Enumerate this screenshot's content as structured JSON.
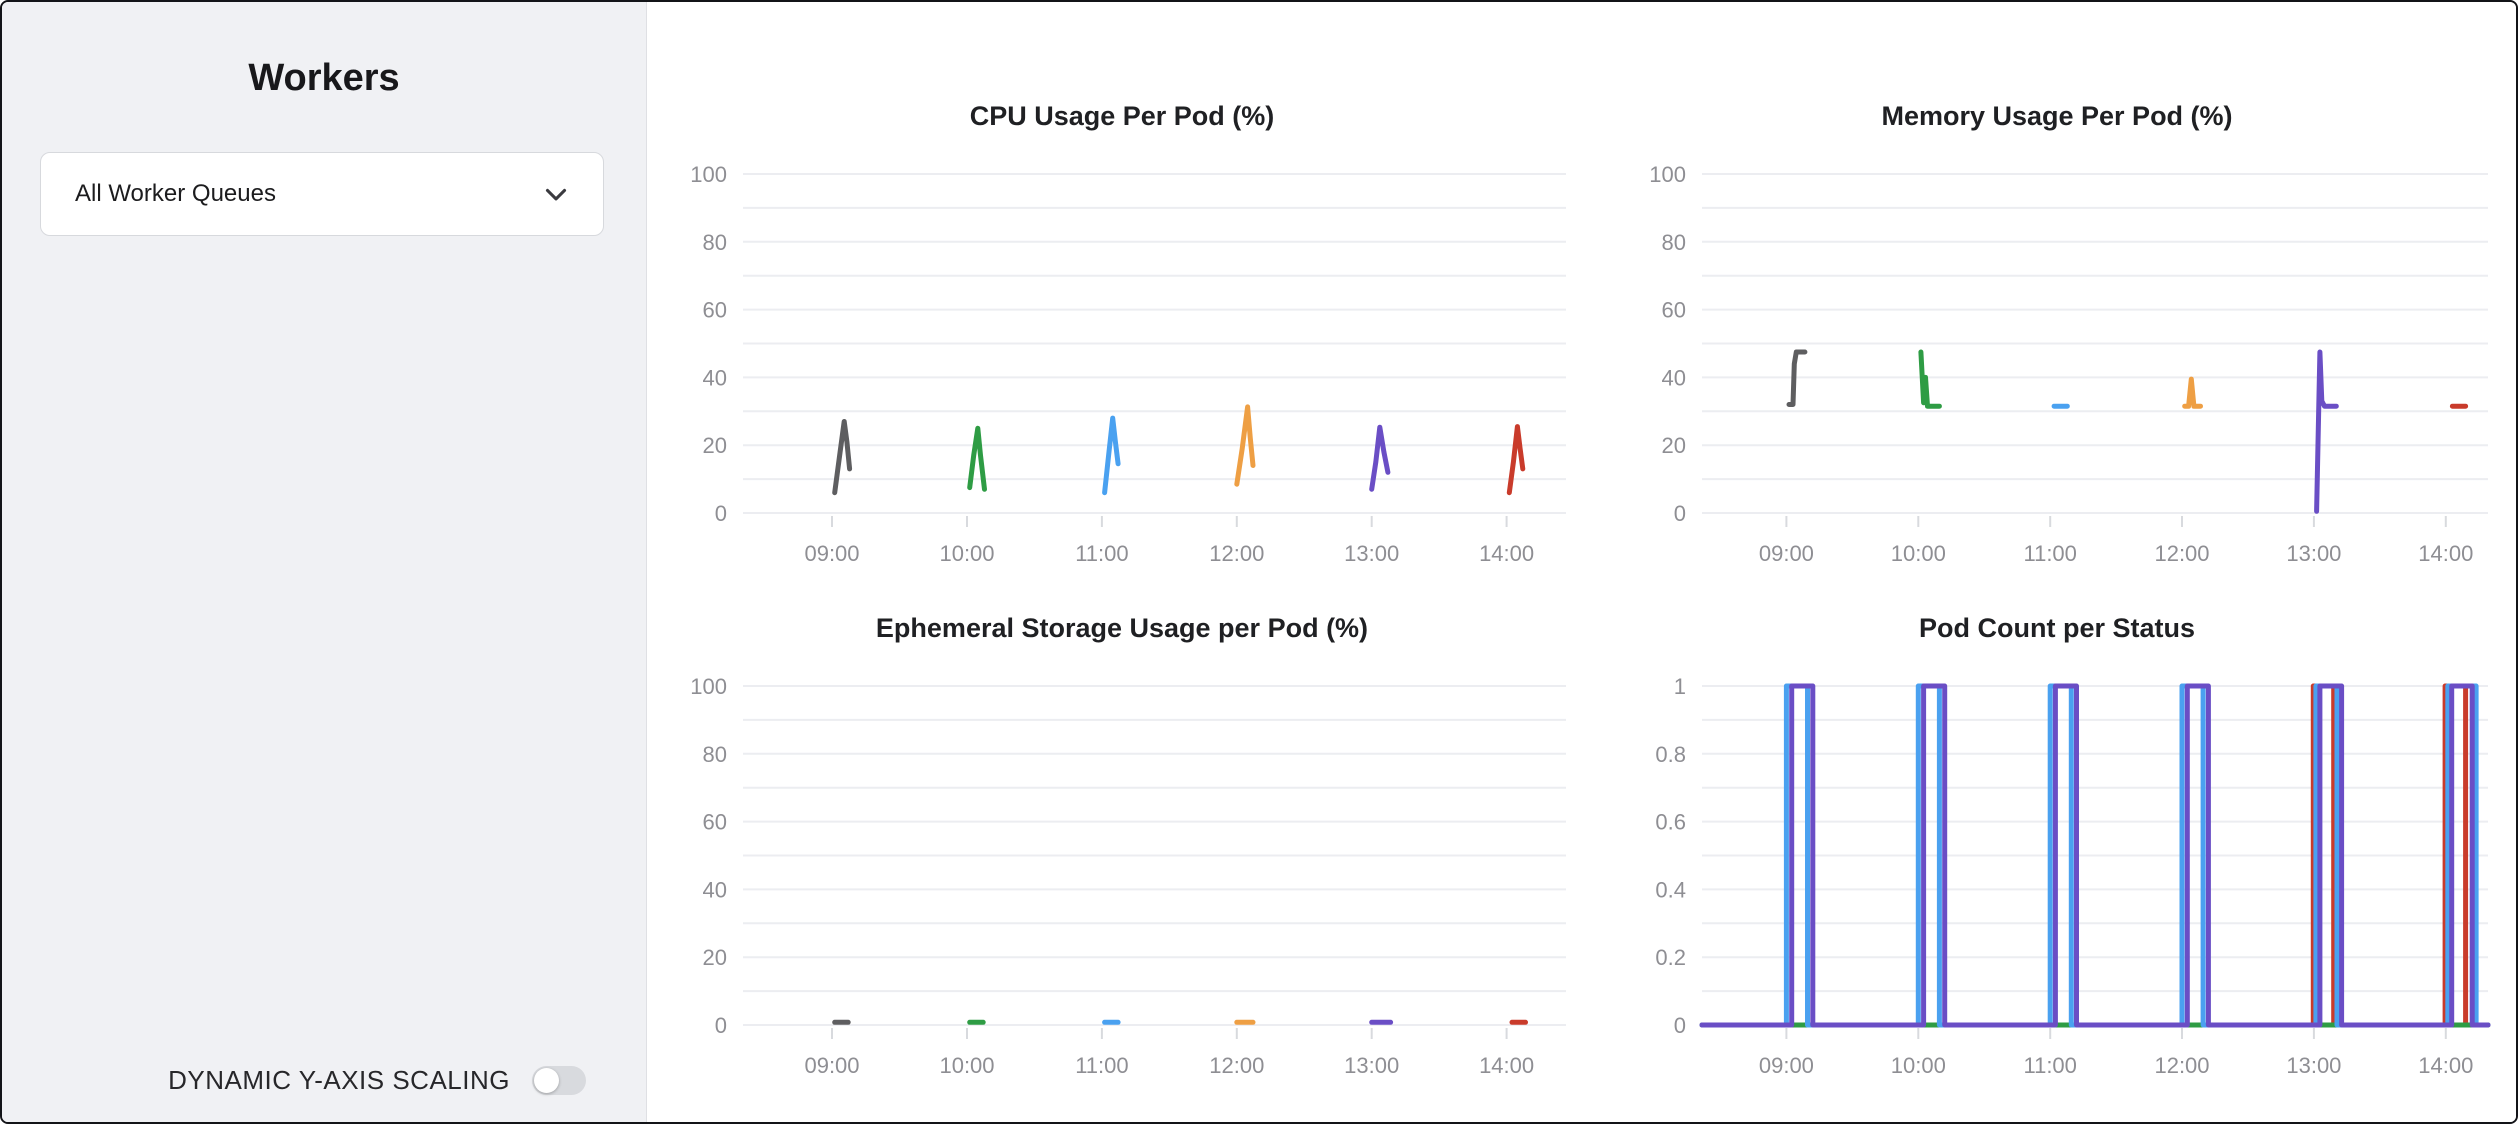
{
  "sidebar": {
    "title": "Workers",
    "queue_selector": {
      "value": "All Worker Queues"
    },
    "toggle": {
      "label": "DYNAMIC Y-AXIS SCALING",
      "enabled": false
    }
  },
  "chart_data": [
    {
      "type": "line",
      "title": "CPU Usage Per Pod (%)",
      "xlim": [
        8.34,
        14.44
      ],
      "ylim": [
        0,
        100
      ],
      "yticks": [
        0,
        20,
        40,
        60,
        80,
        100
      ],
      "grid_step": 10,
      "x_tick_hours": [
        9,
        10,
        11,
        12,
        13,
        14
      ],
      "x_tick_labels": [
        "09:00",
        "10:00",
        "11:00",
        "12:00",
        "13:00",
        "14:00"
      ],
      "series": [
        {
          "color": "#5e5e60",
          "points": [
            [
              9.02,
              6
            ],
            [
              9.06,
              18
            ],
            [
              9.09,
              27
            ],
            [
              9.11,
              21
            ],
            [
              9.13,
              13
            ]
          ]
        },
        {
          "color": "#2e9c44",
          "points": [
            [
              10.02,
              7.5
            ],
            [
              10.05,
              17
            ],
            [
              10.08,
              25
            ],
            [
              10.1,
              17
            ],
            [
              10.13,
              7
            ]
          ]
        },
        {
          "color": "#4aa1f0",
          "points": [
            [
              11.02,
              6
            ],
            [
              11.05,
              17
            ],
            [
              11.08,
              28
            ],
            [
              11.1,
              21
            ],
            [
              11.12,
              14.5
            ]
          ]
        },
        {
          "color": "#ee9f44",
          "points": [
            [
              12.0,
              8.5
            ],
            [
              12.04,
              19
            ],
            [
              12.08,
              31.3
            ],
            [
              12.1,
              22
            ],
            [
              12.12,
              14
            ]
          ]
        },
        {
          "color": "#6a4ec5",
          "points": [
            [
              13.0,
              7
            ],
            [
              13.03,
              15
            ],
            [
              13.06,
              25.3
            ],
            [
              13.09,
              18
            ],
            [
              13.12,
              12
            ]
          ]
        },
        {
          "color": "#c93b2b",
          "points": [
            [
              14.02,
              6
            ],
            [
              14.05,
              15
            ],
            [
              14.08,
              25.5
            ],
            [
              14.1,
              19
            ],
            [
              14.12,
              13
            ]
          ]
        }
      ]
    },
    {
      "type": "line",
      "title": "Memory Usage Per Pod (%)",
      "xlim": [
        8.36,
        14.32
      ],
      "ylim": [
        0,
        100
      ],
      "yticks": [
        0,
        20,
        40,
        60,
        80,
        100
      ],
      "grid_step": 10,
      "x_tick_hours": [
        9,
        10,
        11,
        12,
        13,
        14
      ],
      "x_tick_labels": [
        "09:00",
        "10:00",
        "11:00",
        "12:00",
        "13:00",
        "14:00"
      ],
      "series": [
        {
          "color": "#5e5e60",
          "points": [
            [
              9.02,
              32
            ],
            [
              9.05,
              32
            ],
            [
              9.06,
              44
            ],
            [
              9.075,
              47.5
            ],
            [
              9.14,
              47.5
            ]
          ]
        },
        {
          "color": "#2e9c44",
          "points": [
            [
              10.02,
              47.5
            ],
            [
              10.04,
              32.5
            ],
            [
              10.055,
              40
            ],
            [
              10.07,
              31.5
            ],
            [
              10.16,
              31.5
            ]
          ]
        },
        {
          "color": "#4aa1f0",
          "points": [
            [
              11.03,
              31.5
            ],
            [
              11.13,
              31.5
            ]
          ]
        },
        {
          "color": "#ee9f44",
          "points": [
            [
              12.02,
              31.5
            ],
            [
              12.05,
              31.5
            ],
            [
              12.07,
              39.5
            ],
            [
              12.09,
              31.5
            ],
            [
              12.14,
              31.5
            ]
          ]
        },
        {
          "color": "#6a4ec5",
          "points": [
            [
              13.02,
              0.5
            ],
            [
              13.045,
              47.5
            ],
            [
              13.06,
              33
            ],
            [
              13.08,
              31.5
            ],
            [
              13.17,
              31.5
            ]
          ]
        },
        {
          "color": "#c93b2b",
          "points": [
            [
              14.05,
              31.5
            ],
            [
              14.15,
              31.5
            ]
          ]
        }
      ]
    },
    {
      "type": "line",
      "title": "Ephemeral Storage Usage per Pod (%)",
      "xlim": [
        8.34,
        14.44
      ],
      "ylim": [
        0,
        100
      ],
      "yticks": [
        0,
        20,
        40,
        60,
        80,
        100
      ],
      "grid_step": 10,
      "x_tick_hours": [
        9,
        10,
        11,
        12,
        13,
        14
      ],
      "x_tick_labels": [
        "09:00",
        "10:00",
        "11:00",
        "12:00",
        "13:00",
        "14:00"
      ],
      "series": [
        {
          "color": "#5e5e60",
          "points": [
            [
              9.02,
              0.8
            ],
            [
              9.12,
              0.8
            ]
          ]
        },
        {
          "color": "#2e9c44",
          "points": [
            [
              10.02,
              0.8
            ],
            [
              10.12,
              0.8
            ]
          ]
        },
        {
          "color": "#4aa1f0",
          "points": [
            [
              11.02,
              0.8
            ],
            [
              11.12,
              0.8
            ]
          ]
        },
        {
          "color": "#ee9f44",
          "points": [
            [
              12.0,
              0.8
            ],
            [
              12.12,
              0.8
            ]
          ]
        },
        {
          "color": "#6a4ec5",
          "points": [
            [
              13.0,
              0.8
            ],
            [
              13.14,
              0.8
            ]
          ]
        },
        {
          "color": "#c93b2b",
          "points": [
            [
              14.04,
              0.8
            ],
            [
              14.14,
              0.8
            ]
          ]
        }
      ]
    },
    {
      "type": "line",
      "title": "Pod Count per Status",
      "xlim": [
        8.36,
        14.32
      ],
      "ylim": [
        0,
        1
      ],
      "yticks": [
        0,
        0.2,
        0.4,
        0.6,
        0.8,
        1
      ],
      "grid_step": 0.1,
      "x_tick_hours": [
        9,
        10,
        11,
        12,
        13,
        14
      ],
      "x_tick_labels": [
        "09:00",
        "10:00",
        "11:00",
        "12:00",
        "13:00",
        "14:00"
      ],
      "series": [
        {
          "color": "#c93b2b",
          "points": [
            [
              8.36,
              0
            ],
            [
              12.995,
              0
            ],
            [
              12.995,
              1
            ],
            [
              13.15,
              1
            ],
            [
              13.15,
              0
            ],
            [
              13.995,
              0
            ],
            [
              13.995,
              1
            ],
            [
              14.15,
              1
            ],
            [
              14.15,
              0
            ],
            [
              14.32,
              0
            ]
          ]
        },
        {
          "color": "#2e9c44",
          "points": [
            [
              8.36,
              0
            ],
            [
              14.32,
              0
            ]
          ]
        },
        {
          "color": "#4aa1f0",
          "points": [
            [
              8.36,
              0
            ],
            [
              9,
              0
            ],
            [
              9,
              1
            ],
            [
              9.16,
              1
            ],
            [
              9.16,
              0
            ],
            [
              10,
              0
            ],
            [
              10,
              1
            ],
            [
              10.16,
              1
            ],
            [
              10.16,
              0
            ],
            [
              11,
              0
            ],
            [
              11,
              1
            ],
            [
              11.16,
              1
            ],
            [
              11.16,
              0
            ],
            [
              12,
              0
            ],
            [
              12,
              1
            ],
            [
              12.16,
              1
            ],
            [
              12.16,
              0
            ],
            [
              13.015,
              0
            ],
            [
              13.015,
              1
            ],
            [
              13.175,
              1
            ],
            [
              13.175,
              0
            ],
            [
              14.015,
              0
            ],
            [
              14.015,
              1
            ],
            [
              14.23,
              1
            ],
            [
              14.23,
              0
            ],
            [
              14.32,
              0
            ]
          ]
        },
        {
          "color": "#6a4ec5",
          "points": [
            [
              8.36,
              0
            ],
            [
              9.04,
              0
            ],
            [
              9.04,
              1
            ],
            [
              9.2,
              1
            ],
            [
              9.2,
              0
            ],
            [
              10.04,
              0
            ],
            [
              10.04,
              1
            ],
            [
              10.2,
              1
            ],
            [
              10.2,
              0
            ],
            [
              11.04,
              0
            ],
            [
              11.04,
              1
            ],
            [
              11.2,
              1
            ],
            [
              11.2,
              0
            ],
            [
              12.04,
              0
            ],
            [
              12.04,
              1
            ],
            [
              12.2,
              1
            ],
            [
              12.2,
              0
            ],
            [
              13.045,
              0
            ],
            [
              13.045,
              1
            ],
            [
              13.21,
              1
            ],
            [
              13.21,
              0
            ],
            [
              14.045,
              0
            ],
            [
              14.045,
              1
            ],
            [
              14.2,
              1
            ],
            [
              14.2,
              0
            ],
            [
              14.32,
              0
            ]
          ]
        }
      ]
    }
  ]
}
